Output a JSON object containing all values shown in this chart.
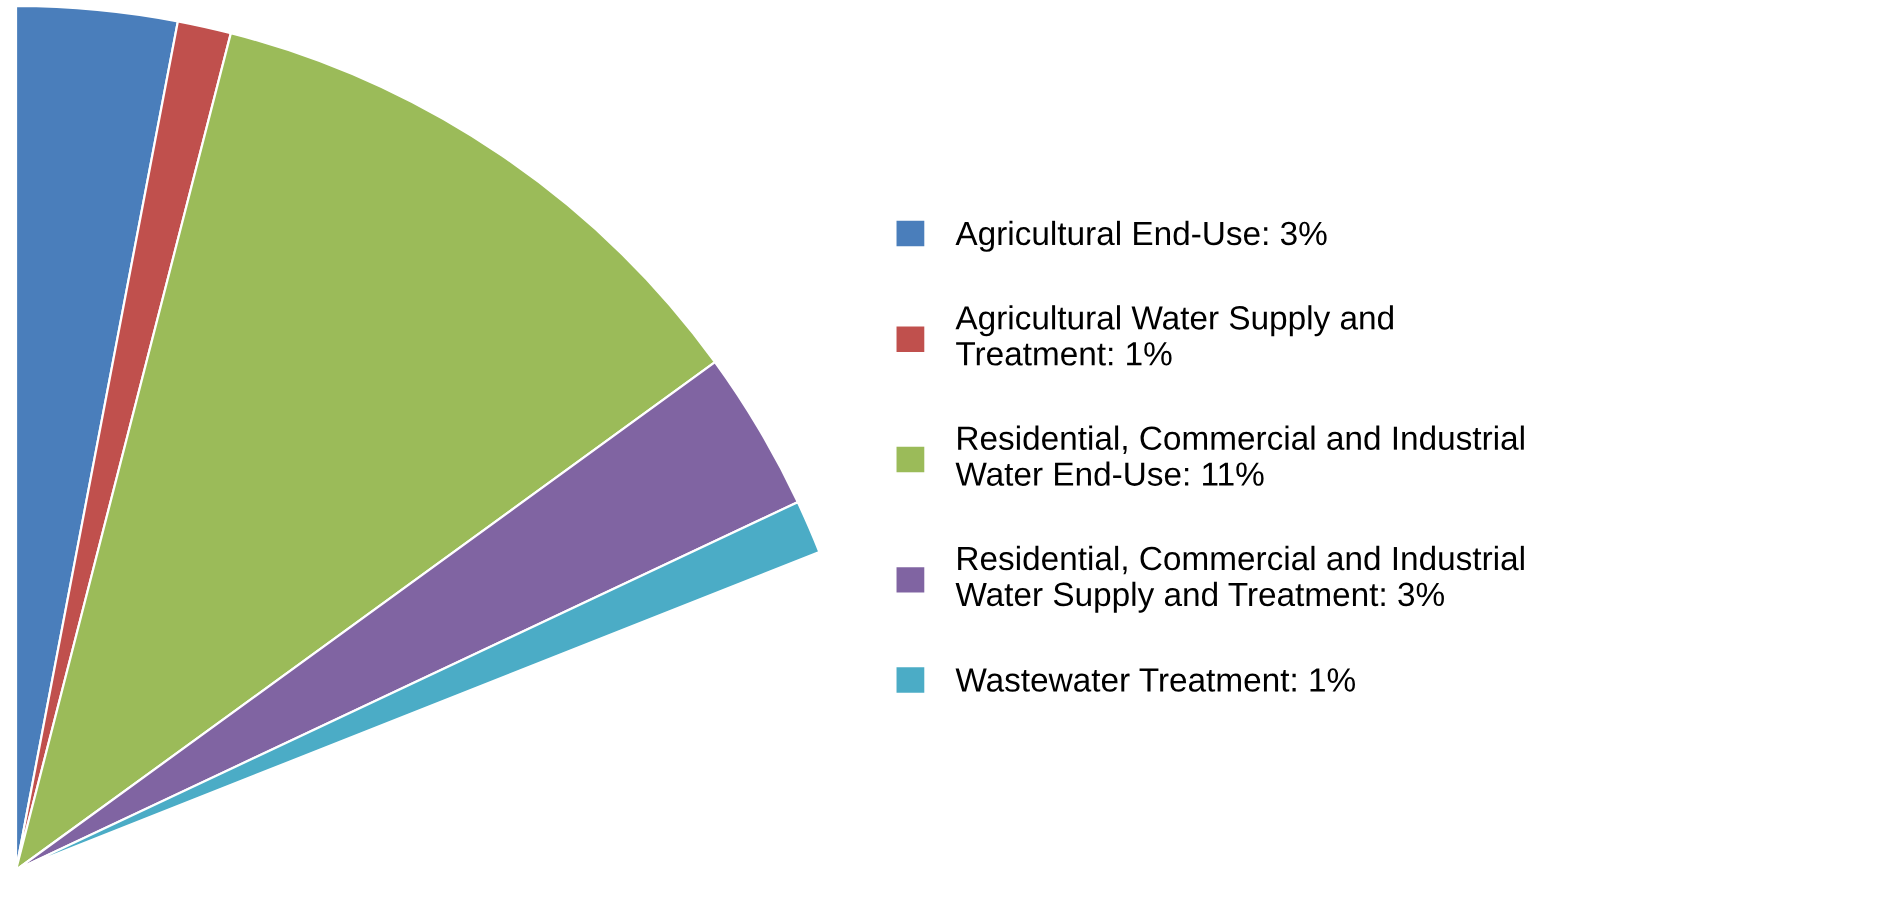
{
  "chart_data": {
    "type": "pie",
    "categories": [
      "Agricultural End-Use",
      "Agricultural Water Supply and\nTreatment",
      "Residential, Commercial and Industrial\nWater End-Use",
      "Residential, Commercial and Industrial\nWater Supply and Treatment",
      "Wastewater Treatment"
    ],
    "values": [
      3,
      1,
      11,
      3,
      1
    ],
    "value_labels": [
      "3%",
      "1%",
      "11%",
      "3%",
      "1%"
    ],
    "colors": [
      "#4a7ebb",
      "#c0504d",
      "#9bbb59",
      "#8064a2",
      "#4bacc6"
    ],
    "legend": "right"
  }
}
